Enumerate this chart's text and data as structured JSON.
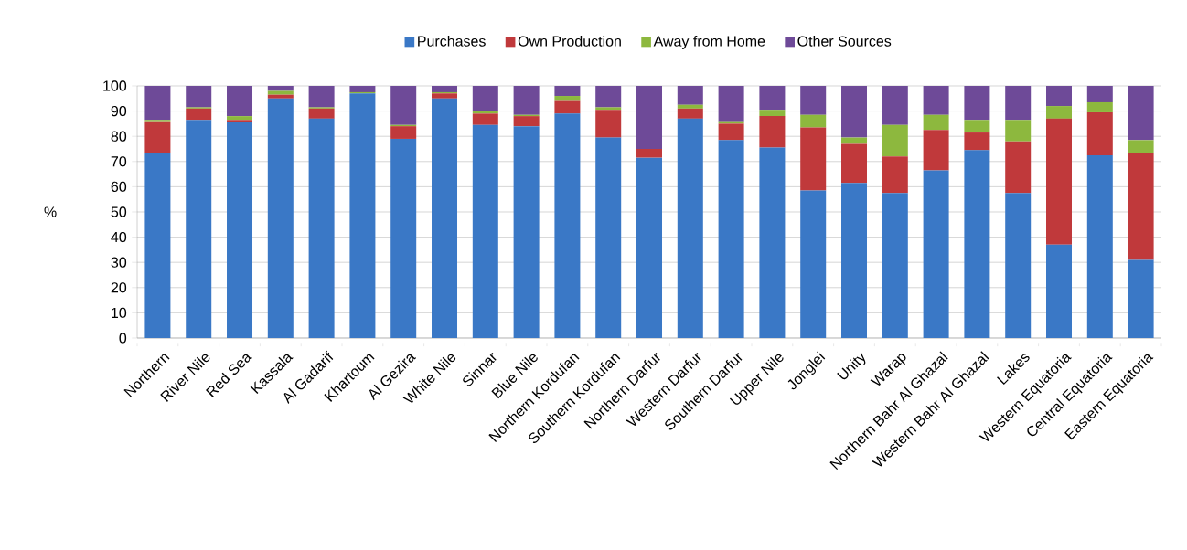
{
  "chart_data": {
    "type": "bar",
    "stacked": true,
    "ylabel": "%",
    "categories": [
      "Northern",
      "River Nile",
      "Red Sea",
      "Kassala",
      "Al Gadarif",
      "Khartoum",
      "Al Gezira",
      "White Nile",
      "Sinnar",
      "Blue Nile",
      "Northern Kordufan",
      "Southern Kordufan",
      "Northern Darfur",
      "Western Darfur",
      "Southern Darfur",
      "Upper Nile",
      "Jonglei",
      "Unity",
      "Warap",
      "Northern Bahr Al Ghazal",
      "Western Bahr Al Ghazal",
      "Lakes",
      "Western Equatoria",
      "Central Equatoria",
      "Eastern Equatoria"
    ],
    "series": [
      {
        "name": "Purchases",
        "color": "#3a78c6",
        "values": [
          73.5,
          86.5,
          85.5,
          95,
          87,
          97,
          79,
          95,
          84.5,
          84,
          89,
          79.5,
          71.5,
          87,
          78.5,
          75.5,
          58.5,
          61.5,
          57.5,
          66.5,
          74.5,
          57.5,
          37,
          72.5,
          31
        ]
      },
      {
        "name": "Own Production",
        "color": "#c0393b",
        "values": [
          12.5,
          4.5,
          1,
          1.5,
          4,
          0,
          5,
          2,
          4.5,
          4,
          5,
          11,
          3.5,
          4,
          6.5,
          12.5,
          25,
          15.5,
          14.5,
          16,
          7,
          20.5,
          50,
          17,
          42.5
        ]
      },
      {
        "name": "Away from Home",
        "color": "#8db83e",
        "values": [
          0.5,
          0.5,
          1.5,
          1.5,
          0.5,
          0.5,
          0.5,
          0.5,
          1,
          0.5,
          2,
          1,
          0,
          1.5,
          1,
          2.5,
          5,
          2.5,
          12.5,
          6,
          5,
          8.5,
          5,
          4,
          5
        ]
      },
      {
        "name": "Other Sources",
        "color": "#6e4a98",
        "values": [
          13.5,
          8.5,
          12,
          2,
          8.5,
          2.5,
          15.5,
          2.5,
          10,
          11.5,
          4,
          8.5,
          25,
          7.5,
          14,
          9.5,
          11.5,
          20.5,
          15.5,
          11.5,
          13.5,
          13.5,
          8,
          6.5,
          21.5
        ]
      }
    ],
    "ylim": [
      0,
      100
    ],
    "yticks": [
      0,
      10,
      20,
      30,
      40,
      50,
      60,
      70,
      80,
      90,
      100
    ],
    "grid": "y",
    "legend": "top"
  }
}
